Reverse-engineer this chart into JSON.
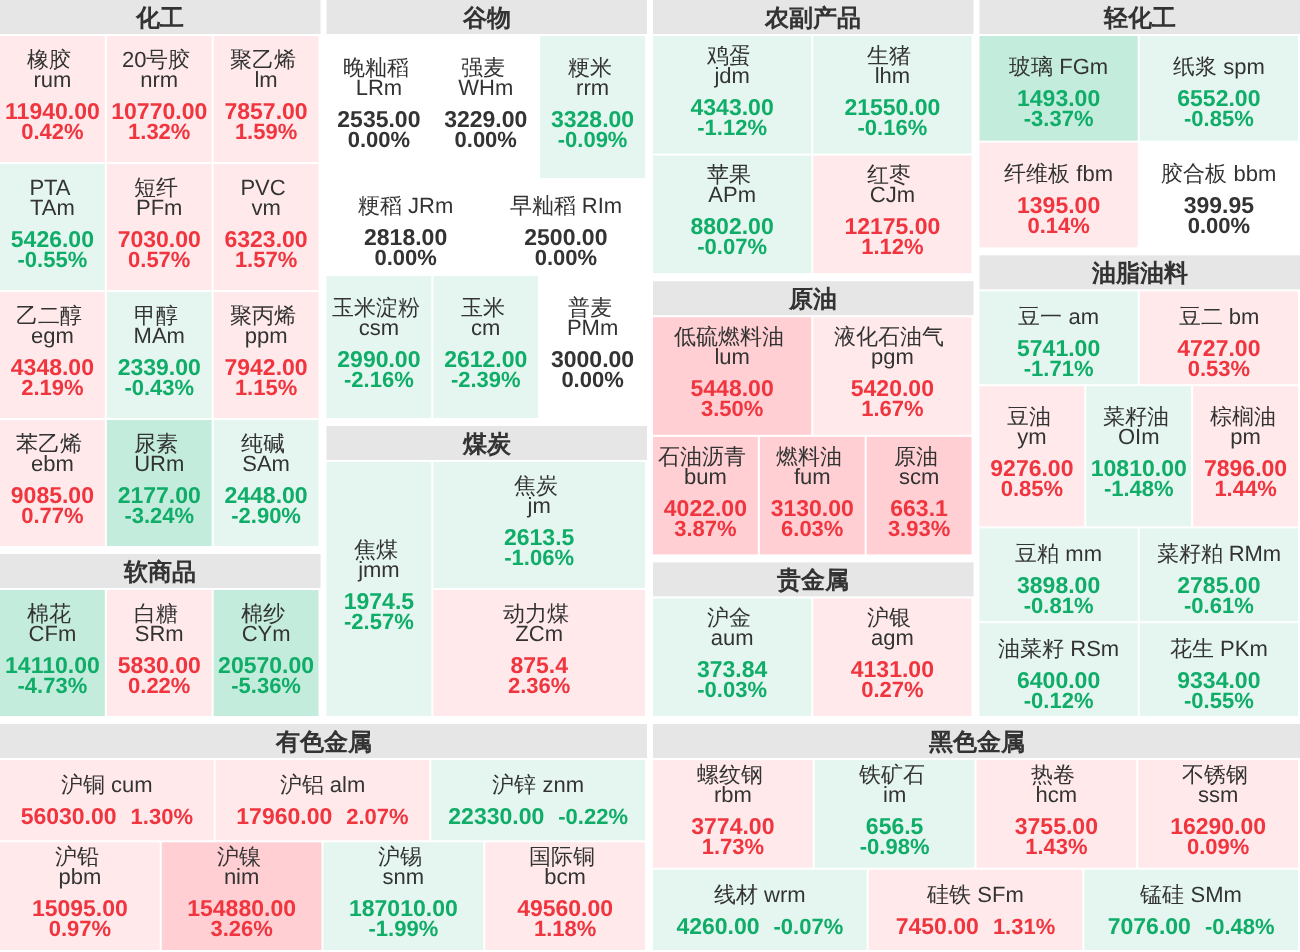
{
  "chart_data": [
    {
      "type": "other",
      "title": "化工",
      "categories": [
        "橡胶 rum",
        "20号胶 nrm",
        "聚乙烯 lm",
        "PTA TAm",
        "短纤 PFm",
        "PVC vm",
        "乙二醇 egm",
        "甲醇 MAm",
        "聚丙烯 ppm",
        "苯乙烯 ebm",
        "尿素 URm",
        "纯碱 SAm"
      ],
      "series": [
        {
          "colors": [
            "#ffe9eb",
            "#ffe9eb",
            "#ffe9eb",
            "#e4f6ef",
            "#ffe9eb",
            "#ffe9eb",
            "#ffe9eb",
            "#e4f6ef",
            "#ffe9eb",
            "#ffe9eb",
            "#c3ecdc",
            "#e4f6ef"
          ],
          "values": [
            11940,
            10770,
            7857,
            5426,
            7030,
            6323,
            4348,
            2339,
            7942,
            9085,
            2177,
            2448
          ],
          "value_labels": [
            "11940.00",
            "10770.00",
            "7857.00",
            "5426.00",
            "7030.00",
            "6323.00",
            "4348.00",
            "2339.00",
            "7942.00",
            "9085.00",
            "2177.00",
            "2448.00"
          ]
        },
        {
          "values": [
            0.42,
            1.32,
            1.59,
            -0.55,
            0.57,
            1.57,
            2.19,
            -0.43,
            1.15,
            0.77,
            -3.24,
            -2.9
          ],
          "value_labels": [
            "0.42%",
            "1.32%",
            "1.59%",
            "-0.55%",
            "0.57%",
            "1.57%",
            "2.19%",
            "-0.43%",
            "1.15%",
            "0.77%",
            "-3.24%",
            "-2.90%"
          ]
        }
      ]
    },
    {
      "type": "other",
      "title": "谷物",
      "categories": [
        "晚籼稻 LRm",
        "强麦 WHm",
        "粳米 rrm",
        "粳稻 JRm",
        "早籼稻 RIm",
        "玉米淀粉 csm",
        "玉米 cm",
        "普麦 PMm"
      ],
      "series": [
        {
          "colors": [
            "#ffffff",
            "#ffffff",
            "#e4f6ef",
            "#ffffff",
            "#ffffff",
            "#e4f6ef",
            "#e4f6ef",
            "#ffffff"
          ],
          "values": [
            2535,
            3229,
            3328,
            2818,
            2500,
            2990,
            2612,
            3000
          ],
          "value_labels": [
            "2535.00",
            "3229.00",
            "3328.00",
            "2818.00",
            "2500.00",
            "2990.00",
            "2612.00",
            "3000.00"
          ]
        },
        {
          "values": [
            0.0,
            0.0,
            -0.09,
            0.0,
            0.0,
            -2.16,
            -2.39,
            0.0
          ],
          "value_labels": [
            "0.00%",
            "0.00%",
            "-0.09%",
            "0.00%",
            "0.00%",
            "-2.16%",
            "-2.39%",
            "0.00%"
          ]
        }
      ]
    },
    {
      "type": "other",
      "title": "农副产品",
      "categories": [
        "鸡蛋 jdm",
        "生猪 lhm",
        "苹果 APm",
        "红枣 CJm"
      ],
      "series": [
        {
          "colors": [
            "#e4f6ef",
            "#e4f6ef",
            "#e4f6ef",
            "#ffe9eb"
          ],
          "values": [
            4343,
            21550,
            8802,
            12175
          ],
          "value_labels": [
            "4343.00",
            "21550.00",
            "8802.00",
            "12175.00"
          ]
        },
        {
          "values": [
            -1.12,
            -0.16,
            -0.07,
            1.12
          ],
          "value_labels": [
            "-1.12%",
            "-0.16%",
            "-0.07%",
            "1.12%"
          ]
        }
      ]
    },
    {
      "type": "other",
      "title": "轻化工",
      "categories": [
        "玻璃 FGm",
        "纸浆 spm",
        "纤维板 fbm",
        "胶合板 bbm"
      ],
      "series": [
        {
          "colors": [
            "#c3ecdc",
            "#e4f6ef",
            "#ffe9eb",
            "#ffffff"
          ],
          "values": [
            1493,
            6552,
            1395,
            399.95
          ],
          "value_labels": [
            "1493.00",
            "6552.00",
            "1395.00",
            "399.95"
          ]
        },
        {
          "values": [
            -3.37,
            -0.85,
            0.14,
            0.0
          ],
          "value_labels": [
            "-3.37%",
            "-0.85%",
            "0.14%",
            "0.00%"
          ]
        }
      ]
    },
    {
      "type": "other",
      "title": "油脂油料",
      "categories": [
        "豆一 am",
        "豆二 bm",
        "豆油 ym",
        "菜籽油 OIm",
        "棕榈油 pm",
        "豆粕 mm",
        "菜籽粕 RMm",
        "油菜籽 RSm",
        "花生 PKm"
      ],
      "series": [
        {
          "colors": [
            "#e4f6ef",
            "#ffe9eb",
            "#ffe9eb",
            "#e4f6ef",
            "#ffe9eb",
            "#e4f6ef",
            "#e4f6ef",
            "#e4f6ef",
            "#e4f6ef"
          ],
          "values": [
            5741,
            4727,
            9276,
            10810,
            7896,
            3898,
            2785,
            6400,
            9334
          ],
          "value_labels": [
            "5741.00",
            "4727.00",
            "9276.00",
            "10810.00",
            "7896.00",
            "3898.00",
            "2785.00",
            "6400.00",
            "9334.00"
          ]
        },
        {
          "values": [
            -1.71,
            0.53,
            0.85,
            -1.48,
            1.44,
            -0.81,
            -0.61,
            -0.12,
            -0.55
          ],
          "value_labels": [
            "-1.71%",
            "0.53%",
            "0.85%",
            "-1.48%",
            "1.44%",
            "-0.81%",
            "-0.61%",
            "-0.12%",
            "-0.55%"
          ]
        }
      ]
    },
    {
      "type": "other",
      "title": "原油",
      "categories": [
        "低硫燃料油 lum",
        "液化石油气 pgm",
        "石油沥青 bum",
        "燃料油 fum",
        "原油 scm"
      ],
      "series": [
        {
          "colors": [
            "#ffcfd3",
            "#ffe9eb",
            "#ffcfd3",
            "#ffcfd3",
            "#ffcfd3"
          ],
          "values": [
            5448,
            5420,
            4022,
            3130,
            663.1
          ],
          "value_labels": [
            "5448.00",
            "5420.00",
            "4022.00",
            "3130.00",
            "663.1"
          ]
        },
        {
          "values": [
            3.5,
            1.67,
            3.87,
            6.03,
            3.93
          ],
          "value_labels": [
            "3.50%",
            "1.67%",
            "3.87%",
            "6.03%",
            "3.93%"
          ]
        }
      ]
    },
    {
      "type": "other",
      "title": "煤炭",
      "categories": [
        "焦煤 jmm",
        "焦炭 jm",
        "动力煤 ZCm"
      ],
      "series": [
        {
          "colors": [
            "#e4f6ef",
            "#e4f6ef",
            "#ffe9eb"
          ],
          "values": [
            1974.5,
            2613.5,
            875.4
          ],
          "value_labels": [
            "1974.5",
            "2613.5",
            "875.4"
          ]
        },
        {
          "values": [
            -2.57,
            -1.06,
            2.36
          ],
          "value_labels": [
            "-2.57%",
            "-1.06%",
            "2.36%"
          ]
        }
      ]
    },
    {
      "type": "other",
      "title": "软商品",
      "categories": [
        "棉花 CFm",
        "白糖 SRm",
        "棉纱 CYm"
      ],
      "series": [
        {
          "colors": [
            "#c3ecdc",
            "#ffe9eb",
            "#c3ecdc"
          ],
          "values": [
            14110,
            5830,
            20570
          ],
          "value_labels": [
            "14110.00",
            "5830.00",
            "20570.00"
          ]
        },
        {
          "values": [
            -4.73,
            0.22,
            -5.36
          ],
          "value_labels": [
            "-4.73%",
            "0.22%",
            "-5.36%"
          ]
        }
      ]
    },
    {
      "type": "other",
      "title": "贵金属",
      "categories": [
        "沪金 aum",
        "沪银 agm"
      ],
      "series": [
        {
          "colors": [
            "#e4f6ef",
            "#ffe9eb"
          ],
          "values": [
            373.84,
            4131
          ],
          "value_labels": [
            "373.84",
            "4131.00"
          ]
        },
        {
          "values": [
            -0.03,
            0.27
          ],
          "value_labels": [
            "-0.03%",
            "0.27%"
          ]
        }
      ]
    },
    {
      "type": "other",
      "title": "有色金属",
      "categories": [
        "沪铜 cum",
        "沪铝 alm",
        "沪锌 znm",
        "沪铅 pbm",
        "沪镍 nim",
        "沪锡 snm",
        "国际铜 bcm"
      ],
      "series": [
        {
          "colors": [
            "#ffe9eb",
            "#ffe9eb",
            "#e4f6ef",
            "#ffe9eb",
            "#ffcfd3",
            "#e4f6ef",
            "#ffe9eb"
          ],
          "values": [
            56030,
            17960,
            22330,
            15095,
            154880,
            187010,
            49560
          ],
          "value_labels": [
            "56030.00",
            "17960.00",
            "22330.00",
            "15095.00",
            "154880.00",
            "187010.00",
            "49560.00"
          ]
        },
        {
          "values": [
            1.3,
            2.07,
            -0.22,
            0.97,
            3.26,
            -1.99,
            1.18
          ],
          "value_labels": [
            "1.30%",
            "2.07%",
            "-0.22%",
            "0.97%",
            "3.26%",
            "-1.99%",
            "1.18%"
          ]
        }
      ]
    },
    {
      "type": "other",
      "title": "黑色金属",
      "categories": [
        "螺纹钢 rbm",
        "铁矿石 im",
        "热卷 hcm",
        "不锈钢 ssm",
        "线材 wrm",
        "硅铁 SFm",
        "锰硅 SMm"
      ],
      "series": [
        {
          "colors": [
            "#ffe9eb",
            "#e4f6ef",
            "#ffe9eb",
            "#ffe9eb",
            "#e4f6ef",
            "#ffe9eb",
            "#e4f6ef"
          ],
          "values": [
            3774,
            656.5,
            3755,
            16290,
            4260,
            7450,
            7076
          ],
          "value_labels": [
            "3774.00",
            "656.5",
            "3755.00",
            "16290.00",
            "4260.00",
            "7450.00",
            "7076.00"
          ]
        },
        {
          "values": [
            1.73,
            -0.98,
            1.43,
            0.09,
            -0.07,
            1.31,
            -0.48
          ],
          "value_labels": [
            "1.73%",
            "-0.98%",
            "1.43%",
            "0.09%",
            "-0.07%",
            "1.31%",
            "-0.48%"
          ]
        }
      ]
    }
  ]
}
